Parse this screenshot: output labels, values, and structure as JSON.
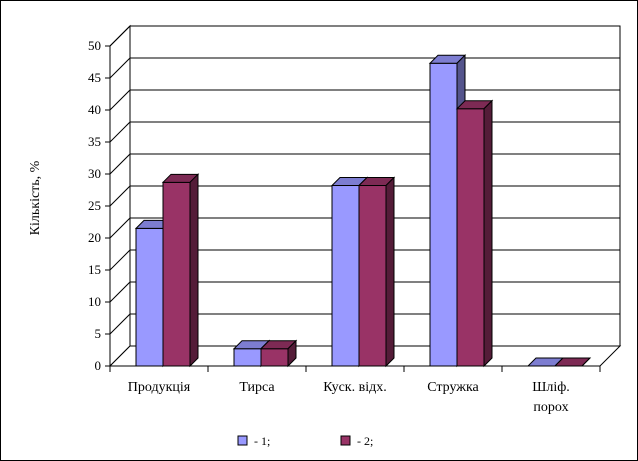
{
  "chart_data": {
    "type": "bar",
    "categories": [
      [
        "Продукція"
      ],
      [
        "Тирса"
      ],
      [
        "Куск. відх."
      ],
      [
        "Стружка"
      ],
      [
        "Шліф.",
        "порох"
      ]
    ],
    "series": [
      {
        "name": "- 1;",
        "values": [
          21.5,
          2.7,
          28.2,
          47.3,
          0
        ],
        "color": "#9999ff"
      },
      {
        "name": "- 2;",
        "values": [
          28.7,
          2.7,
          28.2,
          40.2,
          0
        ],
        "color": "#993366"
      }
    ],
    "ylabel": "Кількість, %",
    "ylim": [
      0,
      50
    ],
    "yticks": [
      0,
      5,
      10,
      15,
      20,
      25,
      30,
      35,
      40,
      45,
      50
    ],
    "grid": true,
    "legend_position": "bottom",
    "style": "3d-clustered-bar"
  }
}
